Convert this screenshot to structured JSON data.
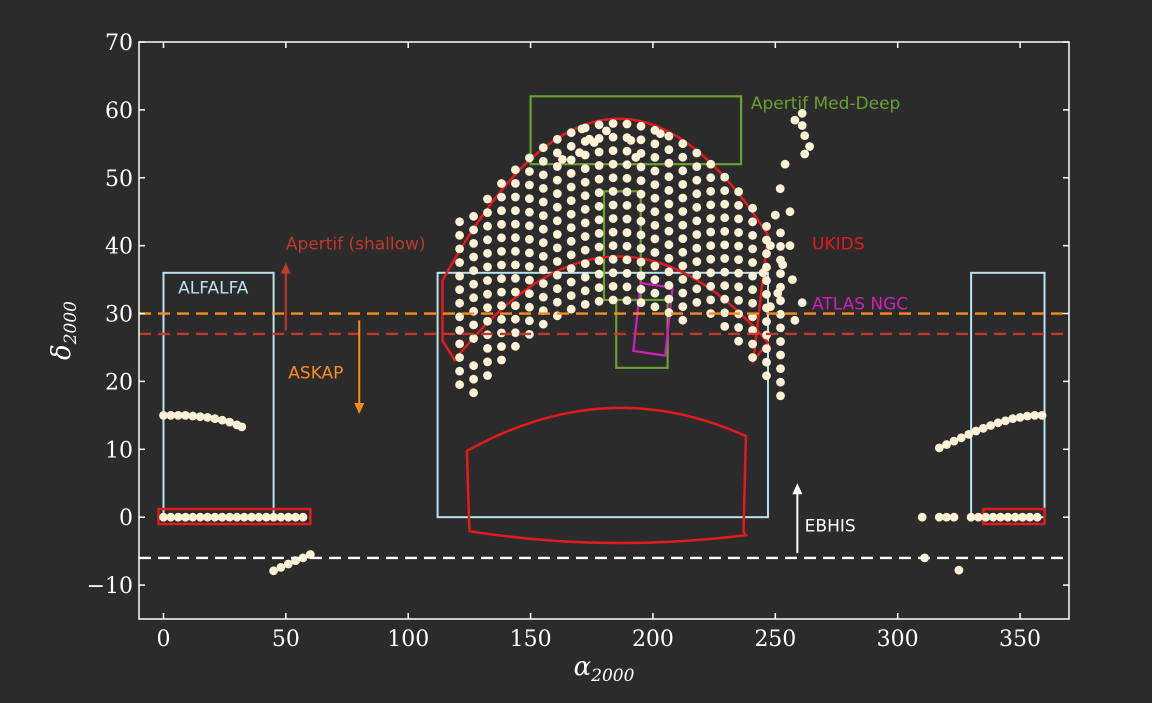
{
  "chart_data": {
    "type": "scatter",
    "xlabel": "α",
    "xlabel_sub": "2000",
    "ylabel": "δ",
    "ylabel_sub": "2000",
    "xlim": [
      -10,
      370
    ],
    "ylim": [
      -15,
      70
    ],
    "xticks": [
      0,
      50,
      100,
      150,
      200,
      250,
      300,
      350
    ],
    "yticks": [
      -10,
      0,
      10,
      20,
      30,
      40,
      50,
      60,
      70
    ],
    "ytick_labels": [
      "−10",
      "0",
      "10",
      "20",
      "30",
      "40",
      "50",
      "60",
      "70"
    ],
    "grid": false,
    "colors": {
      "background": "#2b2b2b",
      "points": "#fdf2d6",
      "alfalfa": "#b9e3ee",
      "ukids": "#e41a1c",
      "apertif_meddeep": "#6aa031",
      "atlas_ngc": "#d11fbd",
      "askap": "#ff8c1a",
      "apertif_shallow": "#c0392b",
      "ebhis": "#ffffff"
    },
    "lines": [
      {
        "name": "ASKAP",
        "y": 30,
        "color": "#ff8c1a"
      },
      {
        "name": "Apertif (shallow)",
        "y": 27,
        "color": "#c0392b"
      },
      {
        "name": "EBHIS",
        "y": -6,
        "color": "#ffffff"
      }
    ],
    "regions": {
      "alfalfa": [
        [
          0,
          45,
          0,
          36
        ],
        [
          112,
          247,
          0,
          36
        ],
        [
          330,
          360,
          0,
          36
        ]
      ],
      "ukids_rects": [
        [
          -2,
          60,
          -1,
          1.2
        ],
        [
          335,
          360,
          -1,
          1.2
        ]
      ],
      "meddeep_rects": [
        [
          150,
          236,
          52,
          62
        ],
        [
          180,
          195,
          32,
          48
        ],
        [
          185,
          206,
          22,
          32
        ]
      ],
      "atlas_ngc_poly": [
        [
          192,
          24.5
        ],
        [
          205,
          23.8
        ],
        [
          208,
          33.8
        ],
        [
          195,
          34.5
        ]
      ]
    },
    "annotations": [
      {
        "text": "Apertif Med-Deep",
        "x": 240,
        "y": 61,
        "color": "#6aa031"
      },
      {
        "text": "UKIDS",
        "x": 265,
        "y": 40.3,
        "color": "#e41a1c"
      },
      {
        "text": "ATLAS NGC",
        "x": 265,
        "y": 31.5,
        "color": "#d11fbd"
      },
      {
        "text": "Apertif (shallow)",
        "x": 50,
        "y": 40.3,
        "color": "#c0392b"
      },
      {
        "text": "ASKAP",
        "x": 51,
        "y": 21.3,
        "color": "#ff8c1a"
      },
      {
        "text": "ALFALFA",
        "x": 6,
        "y": 33.8,
        "color": "#b9e3ee"
      },
      {
        "text": "EBHIS",
        "x": 262,
        "y": -1.2,
        "color": "#ffffff"
      }
    ],
    "arrows": [
      {
        "x": 50,
        "from": 27.5,
        "to": 37.5,
        "color": "#c0392b"
      },
      {
        "x": 80,
        "from": 29,
        "to": 15.2,
        "color": "#ff8c1a"
      },
      {
        "x": 259,
        "from": -5.3,
        "to": 5,
        "color": "#ffffff"
      }
    ],
    "series": [
      {
        "points": [
          [
            0,
            15
          ],
          [
            3,
            15
          ],
          [
            6,
            15
          ],
          [
            9,
            15
          ],
          [
            12,
            14.9
          ],
          [
            15,
            14.8
          ],
          [
            18,
            14.7
          ],
          [
            21,
            14.5
          ],
          [
            24,
            14.3
          ],
          [
            27,
            14
          ],
          [
            30,
            13.6
          ],
          [
            32,
            13.3
          ],
          [
            0,
            0
          ],
          [
            3,
            0
          ],
          [
            6,
            0
          ],
          [
            9,
            0
          ],
          [
            12,
            0
          ],
          [
            15,
            0
          ],
          [
            18,
            0
          ],
          [
            21,
            0
          ],
          [
            24,
            0
          ],
          [
            27,
            0
          ],
          [
            30,
            0
          ],
          [
            33,
            0
          ],
          [
            36,
            0
          ],
          [
            39,
            0
          ],
          [
            42,
            0
          ],
          [
            45,
            0
          ],
          [
            48,
            0
          ],
          [
            51,
            0
          ],
          [
            54,
            0
          ],
          [
            57,
            0
          ],
          [
            45,
            -7.9
          ],
          [
            48,
            -7.4
          ],
          [
            51,
            -6.9
          ],
          [
            54,
            -6.4
          ],
          [
            57,
            -6
          ],
          [
            60,
            -5.5
          ],
          [
            310,
            0
          ],
          [
            311,
            -6
          ],
          [
            317,
            0
          ],
          [
            320,
            0
          ],
          [
            323,
            0
          ],
          [
            325,
            -7.8
          ],
          [
            317,
            10.2
          ],
          [
            320,
            10.7
          ],
          [
            323,
            11.2
          ],
          [
            326,
            11.7
          ],
          [
            329,
            12.2
          ],
          [
            332,
            12.7
          ],
          [
            335,
            13.1
          ],
          [
            338,
            13.5
          ],
          [
            341,
            13.9
          ],
          [
            344,
            14.2
          ],
          [
            347,
            14.5
          ],
          [
            350,
            14.7
          ],
          [
            353,
            14.9
          ],
          [
            356,
            15
          ],
          [
            359,
            15
          ],
          [
            330,
            0
          ],
          [
            333,
            0
          ],
          [
            336,
            0
          ],
          [
            339,
            0
          ],
          [
            342,
            0
          ],
          [
            345,
            0
          ],
          [
            348,
            0
          ],
          [
            351,
            0
          ],
          [
            354,
            0
          ],
          [
            357,
            0
          ],
          [
            258,
            58.5
          ],
          [
            261,
            57.7
          ],
          [
            261,
            59.5
          ],
          [
            262,
            56.2
          ],
          [
            264,
            54.6
          ],
          [
            262,
            53.5
          ],
          [
            261,
            31.6
          ],
          [
            258,
            29
          ],
          [
            163,
            52.7
          ],
          [
            170,
            53.7
          ],
          [
            176,
            55.2
          ],
          [
            181,
            56.9
          ],
          [
            191,
            55.5
          ],
          [
            193,
            53
          ],
          [
            203,
            56.5
          ],
          [
            171,
            57.2
          ],
          [
            174,
            55.7
          ]
        ]
      }
    ]
  }
}
